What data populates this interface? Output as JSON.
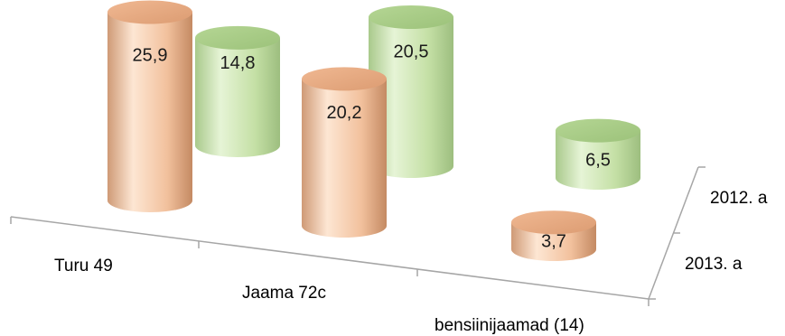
{
  "chart_data": {
    "type": "bar",
    "variant": "3d-cylinder",
    "categories": [
      "Turu 49",
      "Jaama 72c",
      "bensiinijaamad (14)"
    ],
    "series": [
      {
        "name": "2012. a",
        "values": [
          14.8,
          20.5,
          6.5
        ],
        "value_labels": [
          "14,8",
          "20,5",
          "6,5"
        ],
        "color": "#c7e3a8",
        "depth": "back"
      },
      {
        "name": "2013. a",
        "values": [
          25.9,
          20.2,
          3.7
        ],
        "value_labels": [
          "25,9",
          "20,2",
          "3,7"
        ],
        "color": "#f6c9a8",
        "depth": "front"
      }
    ],
    "title": "",
    "xlabel": "",
    "ylabel": "",
    "grid": false,
    "legend": "none"
  }
}
